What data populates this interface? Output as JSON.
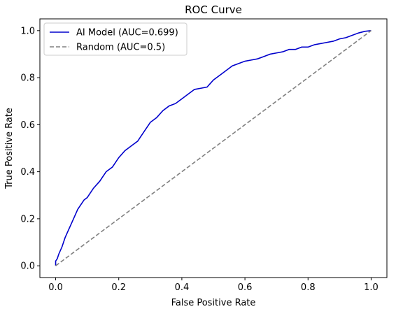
{
  "chart_data": {
    "type": "line",
    "title": "ROC Curve",
    "xlabel": "False Positive Rate",
    "ylabel": "True Positive Rate",
    "xlim": [
      -0.05,
      1.05
    ],
    "ylim": [
      -0.05,
      1.05
    ],
    "xticks": [
      "0.0",
      "0.2",
      "0.4",
      "0.6",
      "0.8",
      "1.0"
    ],
    "yticks": [
      "0.0",
      "0.2",
      "0.4",
      "0.6",
      "0.8",
      "1.0"
    ],
    "grid": false,
    "legend_position": "top-left",
    "series": [
      {
        "name": "AI Model (AUC=0.699)",
        "color": "#0000cc",
        "style": "solid",
        "x": [
          0.0,
          0.0,
          0.005,
          0.01,
          0.02,
          0.03,
          0.04,
          0.05,
          0.06,
          0.07,
          0.08,
          0.09,
          0.1,
          0.12,
          0.14,
          0.16,
          0.18,
          0.2,
          0.22,
          0.24,
          0.26,
          0.28,
          0.3,
          0.32,
          0.34,
          0.36,
          0.38,
          0.4,
          0.42,
          0.44,
          0.46,
          0.48,
          0.5,
          0.52,
          0.54,
          0.56,
          0.58,
          0.6,
          0.62,
          0.64,
          0.66,
          0.68,
          0.7,
          0.72,
          0.74,
          0.76,
          0.78,
          0.8,
          0.82,
          0.84,
          0.86,
          0.88,
          0.9,
          0.92,
          0.94,
          0.96,
          0.98,
          1.0
        ],
        "y": [
          0.0,
          0.02,
          0.03,
          0.05,
          0.08,
          0.12,
          0.15,
          0.18,
          0.21,
          0.24,
          0.26,
          0.28,
          0.29,
          0.33,
          0.36,
          0.4,
          0.42,
          0.46,
          0.49,
          0.51,
          0.53,
          0.57,
          0.61,
          0.63,
          0.66,
          0.68,
          0.69,
          0.71,
          0.73,
          0.75,
          0.755,
          0.76,
          0.79,
          0.81,
          0.83,
          0.85,
          0.86,
          0.87,
          0.875,
          0.88,
          0.89,
          0.9,
          0.905,
          0.91,
          0.92,
          0.92,
          0.93,
          0.93,
          0.94,
          0.945,
          0.95,
          0.955,
          0.965,
          0.97,
          0.98,
          0.99,
          0.997,
          1.0
        ]
      },
      {
        "name": "Random (AUC=0.5)",
        "color": "#808080",
        "style": "dashed",
        "x": [
          0.0,
          1.0
        ],
        "y": [
          0.0,
          1.0
        ]
      }
    ]
  }
}
